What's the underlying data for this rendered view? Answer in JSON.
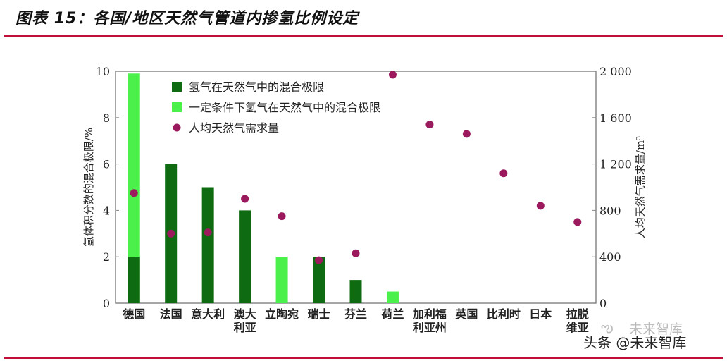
{
  "header": {
    "title": "图表 15：各国/地区天然气管道内掺氢比例设定",
    "rule_color": "#c0103a"
  },
  "watermark": {
    "line1": "未来智库",
    "line2": "头条 @未来智库",
    "icon": "wechat-icon"
  },
  "chart_data": {
    "type": "bar",
    "categories": [
      [
        "德国"
      ],
      [
        "法国"
      ],
      [
        "意大利"
      ],
      [
        "澳大",
        "利亚"
      ],
      [
        "立陶宛"
      ],
      [
        "瑞士"
      ],
      [
        "芬兰"
      ],
      [
        "荷兰"
      ],
      [
        "加利福",
        "利亚州"
      ],
      [
        "英国"
      ],
      [
        "比利时"
      ],
      [
        "日本"
      ],
      [
        "拉脱",
        "维亚"
      ]
    ],
    "series": [
      {
        "name": "氢气在天然气中的混合极限",
        "type": "bar",
        "axis": "left",
        "color": "#0f6b12",
        "values": [
          2,
          6,
          5,
          4,
          0,
          2,
          1,
          0,
          0,
          0,
          0,
          0,
          0
        ]
      },
      {
        "name": "一定条件下氢气在天然气中的混合极限",
        "type": "bar",
        "axis": "left",
        "color": "#4cf04a",
        "values": [
          9.9,
          0,
          0,
          0,
          2,
          0,
          0,
          0.5,
          0,
          0,
          0,
          0,
          0
        ]
      },
      {
        "name": "人均天然气需求量",
        "type": "scatter",
        "axis": "right",
        "color": "#9b1a5e",
        "values": [
          950,
          600,
          610,
          900,
          750,
          370,
          430,
          1970,
          1540,
          1460,
          1120,
          840,
          700
        ]
      }
    ],
    "ylabel": "氢体积分数的混合极限/%",
    "y2label": "人均天然气需求量/m³",
    "ylim": [
      0,
      10
    ],
    "y2lim": [
      0,
      2000
    ],
    "yticks": [
      "0",
      "2",
      "4",
      "6",
      "8",
      "10"
    ],
    "y2ticks": [
      "0",
      "400",
      "800",
      "1 200",
      "1 600",
      "2 000"
    ],
    "legend": "top-left",
    "grid": false
  }
}
